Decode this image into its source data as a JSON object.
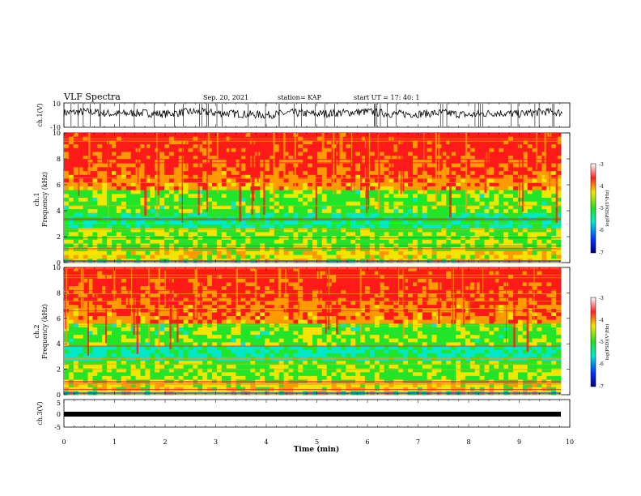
{
  "header": {
    "title": "VLF Spectra",
    "date": "Sep. 20, 2021",
    "station": "station= KAP",
    "start": "start  UT  =   17: 40: 1"
  },
  "chart_data": [
    {
      "type": "line",
      "panel": "ch1-waveform",
      "ylabel": "ch.1(V)",
      "ylim": [
        -10,
        10
      ],
      "yticklabels": [
        "10",
        "-10"
      ],
      "x": [
        0,
        0.5,
        1,
        1.5,
        2,
        2.5,
        3,
        3.5,
        4,
        4.5,
        5,
        5.5,
        6,
        6.5,
        7,
        7.5,
        8,
        8.5,
        9,
        9.5,
        9.85
      ],
      "values": [
        2,
        3,
        1,
        2,
        1,
        3,
        2,
        1,
        0,
        2,
        1,
        2,
        3,
        1,
        1,
        2,
        0,
        2,
        1,
        3,
        2
      ]
    },
    {
      "type": "heatmap",
      "panel": "ch1-spectrogram",
      "ylabel": "ch.1",
      "ylabel2": "Frequency  (kHz)",
      "ylim": [
        0,
        10
      ],
      "yticks": [
        0,
        2,
        4,
        6,
        8,
        10
      ],
      "colorbar": {
        "label": "log(PSD)(V²/Hz)",
        "range": [
          -7,
          -3
        ],
        "ticks": [
          "-3",
          "-4",
          "-5",
          "-6",
          "-7"
        ]
      }
    },
    {
      "type": "heatmap",
      "panel": "ch2-spectrogram",
      "ylabel": "ch.2",
      "ylabel2": "Frequency  (kHz)",
      "ylim": [
        0,
        10
      ],
      "yticks": [
        0,
        2,
        4,
        6,
        8,
        10
      ],
      "colorbar": {
        "label": "log(PSD)(V²/Hz)",
        "range": [
          -7,
          -3
        ],
        "ticks": [
          "-3",
          "-4",
          "-5",
          "-6",
          "-7"
        ]
      }
    },
    {
      "type": "line",
      "panel": "ch3-waveform",
      "ylabel": "ch.3(V)",
      "ylim": [
        -5,
        5
      ],
      "yticklabels": [
        "5",
        "0",
        "-5"
      ],
      "x": [
        0,
        9.85
      ],
      "values": [
        -1.5,
        -1.5
      ]
    }
  ],
  "xaxis": {
    "label": "Time  (min)",
    "ticks": [
      "0",
      "1",
      "2",
      "3",
      "4",
      "5",
      "6",
      "7",
      "8",
      "9",
      "10"
    ],
    "xlim": [
      0,
      10
    ]
  },
  "colors": {
    "red": "#ff1a1a",
    "orange": "#ff9a00",
    "yellow": "#f2e600",
    "green": "#22e52a",
    "cyan": "#00e8c8",
    "blue": "#0033ff",
    "navy": "#000088"
  }
}
